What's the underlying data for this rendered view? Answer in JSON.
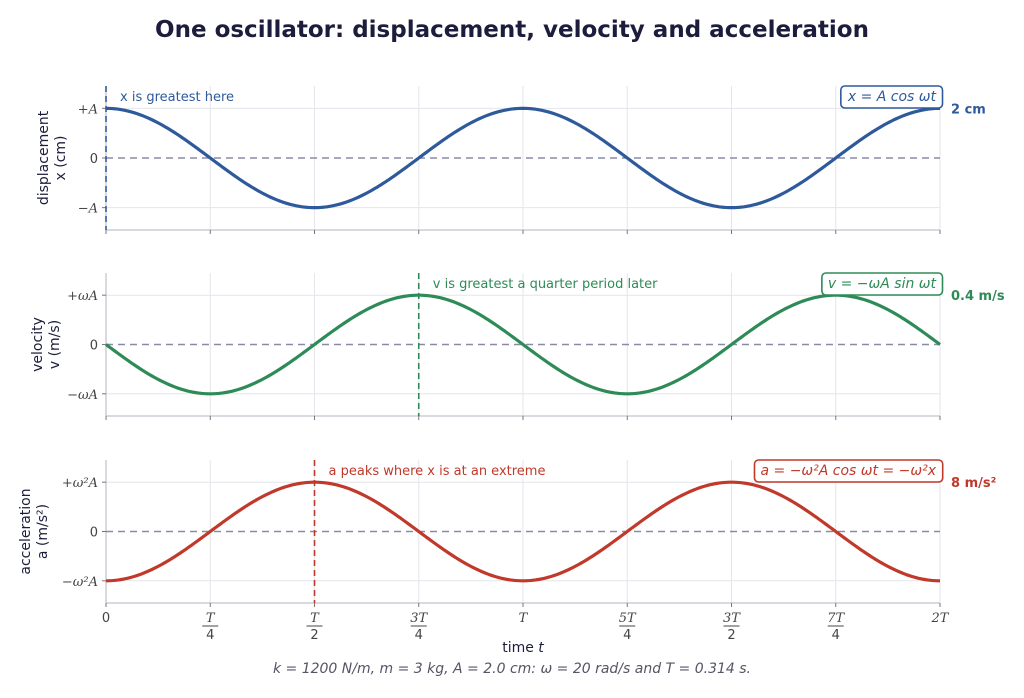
{
  "chart_data": {
    "title": "One oscillator: displacement, velocity and acceleration",
    "type": "line",
    "xlabel": "time t",
    "x_ticks": [
      "0",
      "T/4",
      "T/2",
      "3T/4",
      "T",
      "5T/4",
      "3T/2",
      "7T/4",
      "2T"
    ],
    "xlim": [
      0,
      2
    ],
    "x_unit": "T",
    "caption": "k = 1200 N/m, m = 3 kg, A = 2.0 cm: ω = 20 rad/s and T = 0.314 s.",
    "panels": [
      {
        "key": "displacement",
        "ylabel_line1": "displacement",
        "ylabel_line2": "x (cm)",
        "y_ticks": [
          "+A",
          "0",
          "−A"
        ],
        "ylim": [
          -1.45,
          1.45
        ],
        "equation": "x = A cos ωt",
        "amplitude_label": "2 cm",
        "color": "#2e5a9c",
        "function": "cos",
        "sign": 1,
        "marker_x": 0,
        "annotation": "x is greatest here"
      },
      {
        "key": "velocity",
        "ylabel_line1": "velocity",
        "ylabel_line2": "v (m/s)",
        "y_ticks": [
          "+ωA",
          "0",
          "−ωA"
        ],
        "ylim": [
          -1.45,
          1.45
        ],
        "equation": "v = −ωA sin ωt",
        "amplitude_label": "0.4 m/s",
        "color": "#2e8b57",
        "function": "sin",
        "sign": -1,
        "marker_x": 0.75,
        "annotation": "v is greatest a quarter period later"
      },
      {
        "key": "acceleration",
        "ylabel_line1": "acceleration",
        "ylabel_line2": "a (m/s²)",
        "y_ticks": [
          "+ω²A",
          "0",
          "−ω²A"
        ],
        "ylim": [
          -1.45,
          1.45
        ],
        "equation": "a = −ω²A cos ωt = −ω²x",
        "amplitude_label": "8 m/s²",
        "color": "#c0392b",
        "function": "cos",
        "sign": -1,
        "marker_x": 0.5,
        "annotation": "a peaks where x is at an extreme"
      }
    ]
  }
}
